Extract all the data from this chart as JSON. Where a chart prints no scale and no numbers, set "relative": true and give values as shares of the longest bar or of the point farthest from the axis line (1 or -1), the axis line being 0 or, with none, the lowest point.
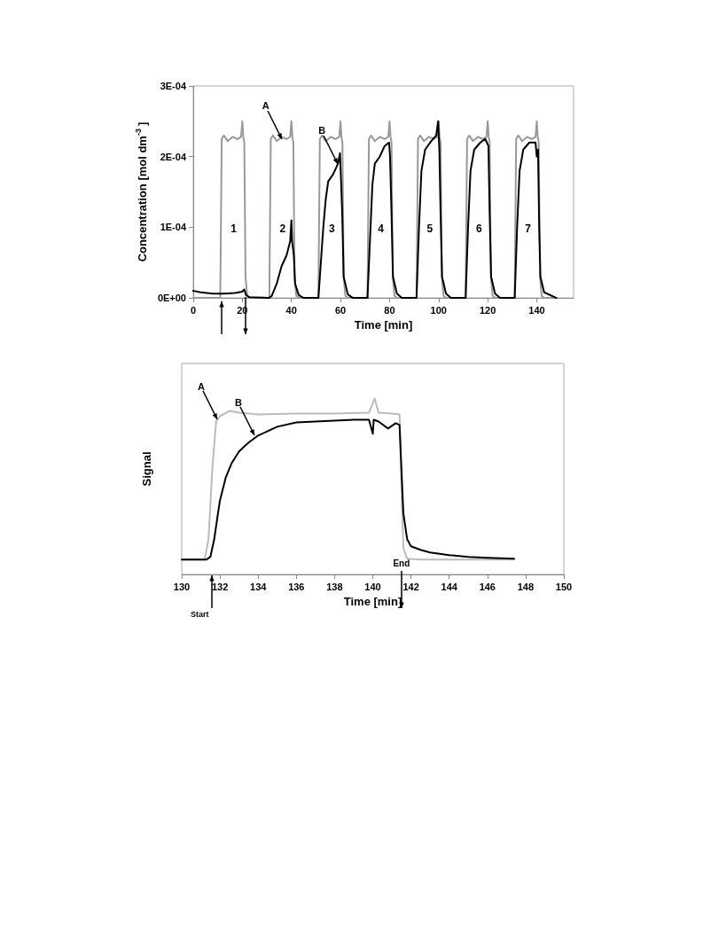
{
  "chart_data": [
    {
      "type": "line",
      "xlabel": "Time [min]",
      "ylabel": "Concentration [mol dm$^{-3}$]",
      "xlim": [
        0,
        155
      ],
      "xticks": [
        0,
        20,
        40,
        60,
        80,
        100,
        120,
        140
      ],
      "ylim": [
        0,
        0.0003
      ],
      "yticks": [
        {
          "value": 0,
          "label": "0E+00"
        },
        {
          "value": 0.0001,
          "label": "1E-04"
        },
        {
          "value": 0.0002,
          "label": "2E-04"
        },
        {
          "value": 0.0003,
          "label": "3E-04"
        }
      ],
      "grid": false,
      "marker": "none",
      "series": [
        {
          "color": "#999999",
          "x": [
            0,
            11,
            11.6,
            12.5,
            14,
            16,
            18,
            19.5,
            20,
            20.4,
            20.8,
            21.3,
            22,
            23,
            31,
            31.6,
            32.5,
            34,
            36,
            38,
            39.5,
            40,
            40.4,
            40.8,
            41.3,
            42,
            43,
            51,
            51.6,
            52.5,
            54,
            56,
            58,
            59.5,
            60,
            60.4,
            60.8,
            61.3,
            62,
            63,
            71,
            71.6,
            72.5,
            74,
            76,
            78,
            79.5,
            80,
            80.4,
            80.8,
            81.3,
            82,
            83,
            91,
            91.6,
            92.5,
            94,
            96,
            98,
            99.5,
            100,
            100.4,
            100.8,
            101.3,
            102,
            103,
            111,
            111.6,
            112.5,
            114,
            116,
            118,
            119.5,
            120,
            120.4,
            120.8,
            121.3,
            122,
            123,
            131,
            131.6,
            132.5,
            134,
            136,
            138,
            139.5,
            140,
            140.4,
            140.8,
            141.3,
            142,
            143,
            148
          ],
          "values": [
            0,
            0,
            0.000225,
            0.00023,
            0.000222,
            0.000228,
            0.000225,
            0.000228,
            0.00025,
            0.000228,
            0.00022,
            3e-05,
            3e-06,
            0,
            0,
            0.000225,
            0.00023,
            0.000222,
            0.000228,
            0.000225,
            0.000228,
            0.00025,
            0.000228,
            0.00022,
            3e-05,
            3e-06,
            0,
            0,
            0.000225,
            0.00023,
            0.000222,
            0.000228,
            0.000225,
            0.000228,
            0.00025,
            0.000228,
            0.00022,
            3e-05,
            3e-06,
            0,
            0,
            0.000225,
            0.00023,
            0.000222,
            0.000228,
            0.000225,
            0.000228,
            0.00025,
            0.000228,
            0.00022,
            3e-05,
            3e-06,
            0,
            0,
            0.000225,
            0.00023,
            0.000222,
            0.000228,
            0.000225,
            0.000228,
            0.00025,
            0.000228,
            0.00022,
            3e-05,
            3e-06,
            0,
            0,
            0.000225,
            0.00023,
            0.000222,
            0.000228,
            0.000225,
            0.000228,
            0.00025,
            0.000228,
            0.00022,
            3e-05,
            3e-06,
            0,
            0,
            0.000225,
            0.00023,
            0.000222,
            0.000228,
            0.000225,
            0.000228,
            0.00025,
            0.000228,
            0.00022,
            3e-05,
            3e-06,
            0,
            0
          ]
        },
        {
          "color": "#000000",
          "x": [
            0,
            3,
            8,
            12,
            17,
            20,
            20.8,
            21.5,
            23,
            31,
            32,
            34,
            36,
            38,
            39.5,
            40,
            40.3,
            41,
            41.5,
            43,
            45,
            51,
            52,
            53,
            54,
            55,
            57,
            59,
            59.8,
            60.2,
            60.7,
            61.3,
            63,
            65,
            71,
            72,
            73,
            74,
            76,
            78,
            79.8,
            80.2,
            80.8,
            81.4,
            83,
            85,
            91,
            92,
            93,
            94.5,
            97,
            99,
            99.8,
            100.3,
            100.8,
            101.4,
            103,
            105,
            111,
            112,
            113,
            114.5,
            117,
            119,
            120.3,
            120.8,
            121.4,
            123,
            125,
            131,
            132,
            133,
            134.5,
            137,
            139.5,
            140,
            140.5,
            141,
            141.5,
            143,
            148
          ],
          "values": [
            1e-05,
            8e-06,
            6e-06,
            6e-06,
            7e-06,
            9e-06,
            1.2e-05,
            4e-06,
            1e-06,
            0,
            3e-06,
            2e-05,
            4.5e-05,
            6e-05,
            8e-05,
            0.00011,
            8e-05,
            6e-05,
            2e-05,
            4e-06,
            0,
            0,
            5e-05,
            0.0001,
            0.00014,
            0.000165,
            0.000175,
            0.00019,
            0.000205,
            0.00017,
            0.00012,
            3e-05,
            5e-06,
            0,
            0,
            8e-05,
            0.00016,
            0.00019,
            0.0002,
            0.000215,
            0.00022,
            0.0002,
            0.00012,
            3e-05,
            6e-06,
            0,
            0,
            0.0001,
            0.00018,
            0.00021,
            0.000222,
            0.00023,
            0.00025,
            0.00021,
            0.00012,
            3e-05,
            6e-06,
            0,
            0,
            0.0001,
            0.00018,
            0.00021,
            0.00022,
            0.000225,
            0.000215,
            0.00012,
            3e-05,
            6e-06,
            0,
            0,
            0.0001,
            0.00018,
            0.00021,
            0.00022,
            0.00022,
            0.0002,
            0.00021,
            0.0001,
            3e-05,
            8e-06,
            0
          ]
        }
      ],
      "annotations": [
        "1",
        "2",
        "3",
        "4",
        "5",
        "6",
        "7",
        {
          "text": "A",
          "x": 36,
          "y": 0.000225
        },
        {
          "text": "B",
          "x": 59,
          "y": 0.00019
        }
      ]
    },
    {
      "type": "line",
      "xlabel": "Time [min]",
      "ylabel": "Signal",
      "relative": true,
      "xlim": [
        130,
        150
      ],
      "xticks": [
        130,
        132,
        134,
        136,
        138,
        140,
        142,
        144,
        146,
        148,
        150
      ],
      "grid": false,
      "marker": "none",
      "series": [
        {
          "color": "#bbbbbb",
          "x": [
            130,
            131.2,
            131.4,
            131.6,
            131.8,
            132,
            132.5,
            133,
            134,
            136,
            138,
            139.8,
            140.1,
            140.3,
            141,
            141.4,
            141.5,
            141.6,
            141.8,
            142.5,
            147.4
          ],
          "values": [
            0.085,
            0.085,
            0.2,
            0.6,
            0.87,
            0.9,
            0.93,
            0.92,
            0.91,
            0.915,
            0.915,
            0.92,
            1,
            0.92,
            0.915,
            0.91,
            0.5,
            0.15,
            0.09,
            0.085,
            0.085
          ]
        },
        {
          "color": "#000000",
          "x": [
            130,
            131.3,
            131.5,
            131.7,
            131.9,
            132,
            132.3,
            132.6,
            133,
            133.5,
            134,
            135,
            136,
            137,
            138,
            139,
            139.8,
            140,
            140.05,
            140.3,
            140.8,
            141.2,
            141.4,
            141.5,
            141.6,
            141.8,
            142,
            142.5,
            143,
            144,
            145,
            146,
            147.4
          ],
          "values": [
            0.085,
            0.085,
            0.1,
            0.2,
            0.35,
            0.42,
            0.55,
            0.63,
            0.7,
            0.75,
            0.79,
            0.84,
            0.865,
            0.87,
            0.875,
            0.88,
            0.88,
            0.8,
            0.88,
            0.87,
            0.83,
            0.86,
            0.85,
            0.6,
            0.35,
            0.2,
            0.16,
            0.14,
            0.125,
            0.11,
            0.1,
            0.095,
            0.09
          ]
        }
      ],
      "annotations": [
        {
          "text": "A",
          "x": 131.85,
          "y": 0.88
        },
        {
          "text": "B",
          "x": 133.8,
          "y": 0.79
        },
        "Start",
        "End"
      ]
    }
  ]
}
